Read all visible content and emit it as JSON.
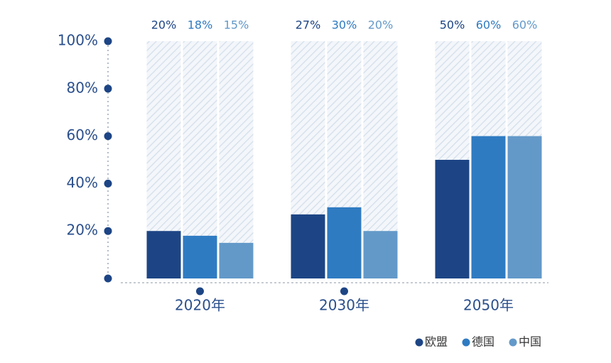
{
  "chart_data": {
    "type": "bar",
    "categories": [
      "2020年",
      "2030年",
      "2050年"
    ],
    "series": [
      {
        "name": "欧盟",
        "color": "#1d4585",
        "values": [
          20,
          27,
          50
        ],
        "value_labels": [
          "20%",
          "27%",
          "50%"
        ]
      },
      {
        "name": "德国",
        "color": "#2f7bc2",
        "values": [
          18,
          30,
          60
        ],
        "value_labels": [
          "18%",
          "30%",
          "60%"
        ]
      },
      {
        "name": "中国",
        "color": "#6399c9",
        "values": [
          15,
          20,
          60
        ],
        "value_labels": [
          "15%",
          "20%",
          "60%"
        ]
      }
    ],
    "ylim": [
      0,
      100
    ],
    "yticks": [
      {
        "value": 20,
        "label": "20%"
      },
      {
        "value": 40,
        "label": "40%"
      },
      {
        "value": 60,
        "label": "60%"
      },
      {
        "value": 80,
        "label": "80%"
      },
      {
        "value": 100,
        "label": "100%"
      }
    ],
    "legend": "bottom-right"
  }
}
